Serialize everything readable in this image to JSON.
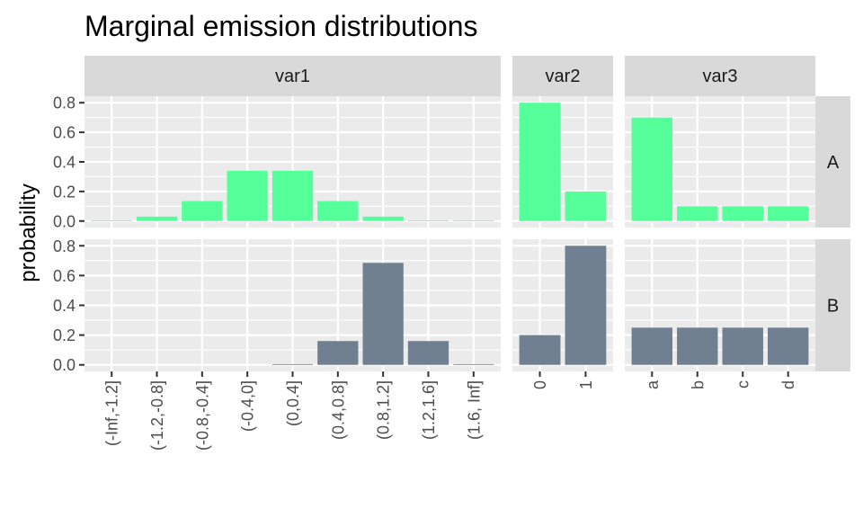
{
  "chart_data": {
    "type": "bar",
    "title": "Marginal emission distributions",
    "ylabel": "probability",
    "xlabel": "",
    "ylim": [
      0,
      0.8
    ],
    "yticks": [
      "0.0",
      "0.2",
      "0.4",
      "0.6",
      "0.8"
    ],
    "facet_columns": [
      "var1",
      "var2",
      "var3"
    ],
    "facet_rows": [
      "A",
      "B"
    ],
    "colors": {
      "A": "#55ff99",
      "B": "#708090",
      "panel": "#ebebeb",
      "strip": "#d9d9d9"
    },
    "panels": [
      {
        "row": "A",
        "column": "var1",
        "categories": [
          "(-Inf,-1.2]",
          "(-1.2,-0.8]",
          "(-0.8,-0.4]",
          "(-0.4,0]",
          "(0,0.4]",
          "(0.4,0.8]",
          "(0.8,1.2]",
          "(1.2,1.6]",
          "(1.6, Inf]"
        ],
        "values": [
          0.005,
          0.03,
          0.135,
          0.34,
          0.34,
          0.135,
          0.03,
          0.005,
          0.005
        ]
      },
      {
        "row": "A",
        "column": "var2",
        "categories": [
          "0",
          "1"
        ],
        "values": [
          0.8,
          0.2
        ]
      },
      {
        "row": "A",
        "column": "var3",
        "categories": [
          "a",
          "b",
          "c",
          "d"
        ],
        "values": [
          0.7,
          0.1,
          0.1,
          0.1
        ]
      },
      {
        "row": "B",
        "column": "var1",
        "categories": [
          "(-Inf,-1.2]",
          "(-1.2,-0.8]",
          "(-0.8,-0.4]",
          "(-0.4,0]",
          "(0,0.4]",
          "(0.4,0.8]",
          "(0.8,1.2]",
          "(1.2,1.6]",
          "(1.6, Inf]"
        ],
        "values": [
          0,
          0,
          0,
          0,
          0.005,
          0.16,
          0.685,
          0.16,
          0.005
        ]
      },
      {
        "row": "B",
        "column": "var2",
        "categories": [
          "0",
          "1"
        ],
        "values": [
          0.2,
          0.8
        ]
      },
      {
        "row": "B",
        "column": "var3",
        "categories": [
          "a",
          "b",
          "c",
          "d"
        ],
        "values": [
          0.25,
          0.25,
          0.25,
          0.25
        ]
      }
    ]
  }
}
